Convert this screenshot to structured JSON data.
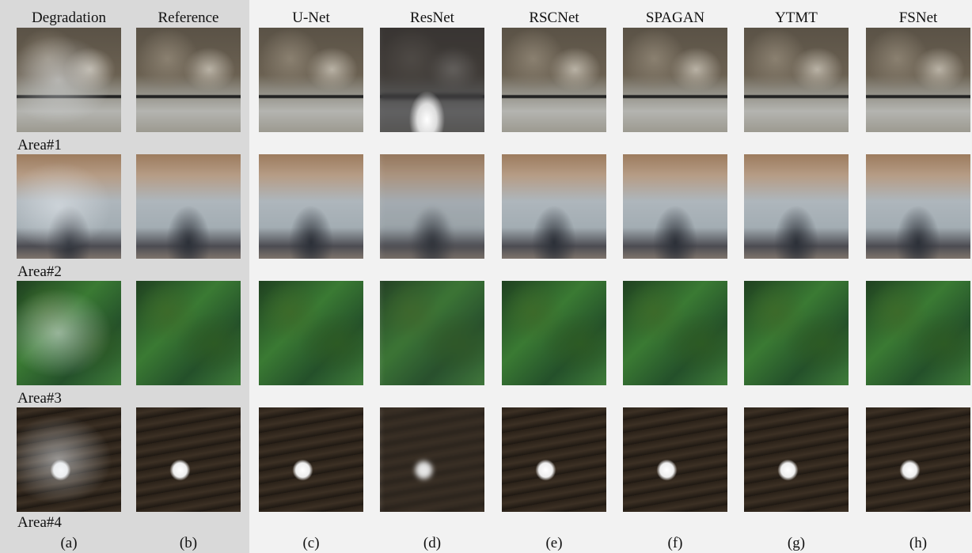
{
  "columns": [
    {
      "header": "Degradation",
      "label": "(a)"
    },
    {
      "header": "Reference",
      "label": "(b)"
    },
    {
      "header": "U-Net",
      "label": "(c)"
    },
    {
      "header": "ResNet",
      "label": "(d)"
    },
    {
      "header": "RSCNet",
      "label": "(e)"
    },
    {
      "header": "SPAGAN",
      "label": "(f)"
    },
    {
      "header": "YTMT",
      "label": "(g)"
    },
    {
      "header": "FSNet",
      "label": "(h)"
    }
  ],
  "rows": [
    {
      "label": "Area#1"
    },
    {
      "label": "Area#2"
    },
    {
      "label": "Area#3"
    },
    {
      "label": "Area#4"
    }
  ]
}
